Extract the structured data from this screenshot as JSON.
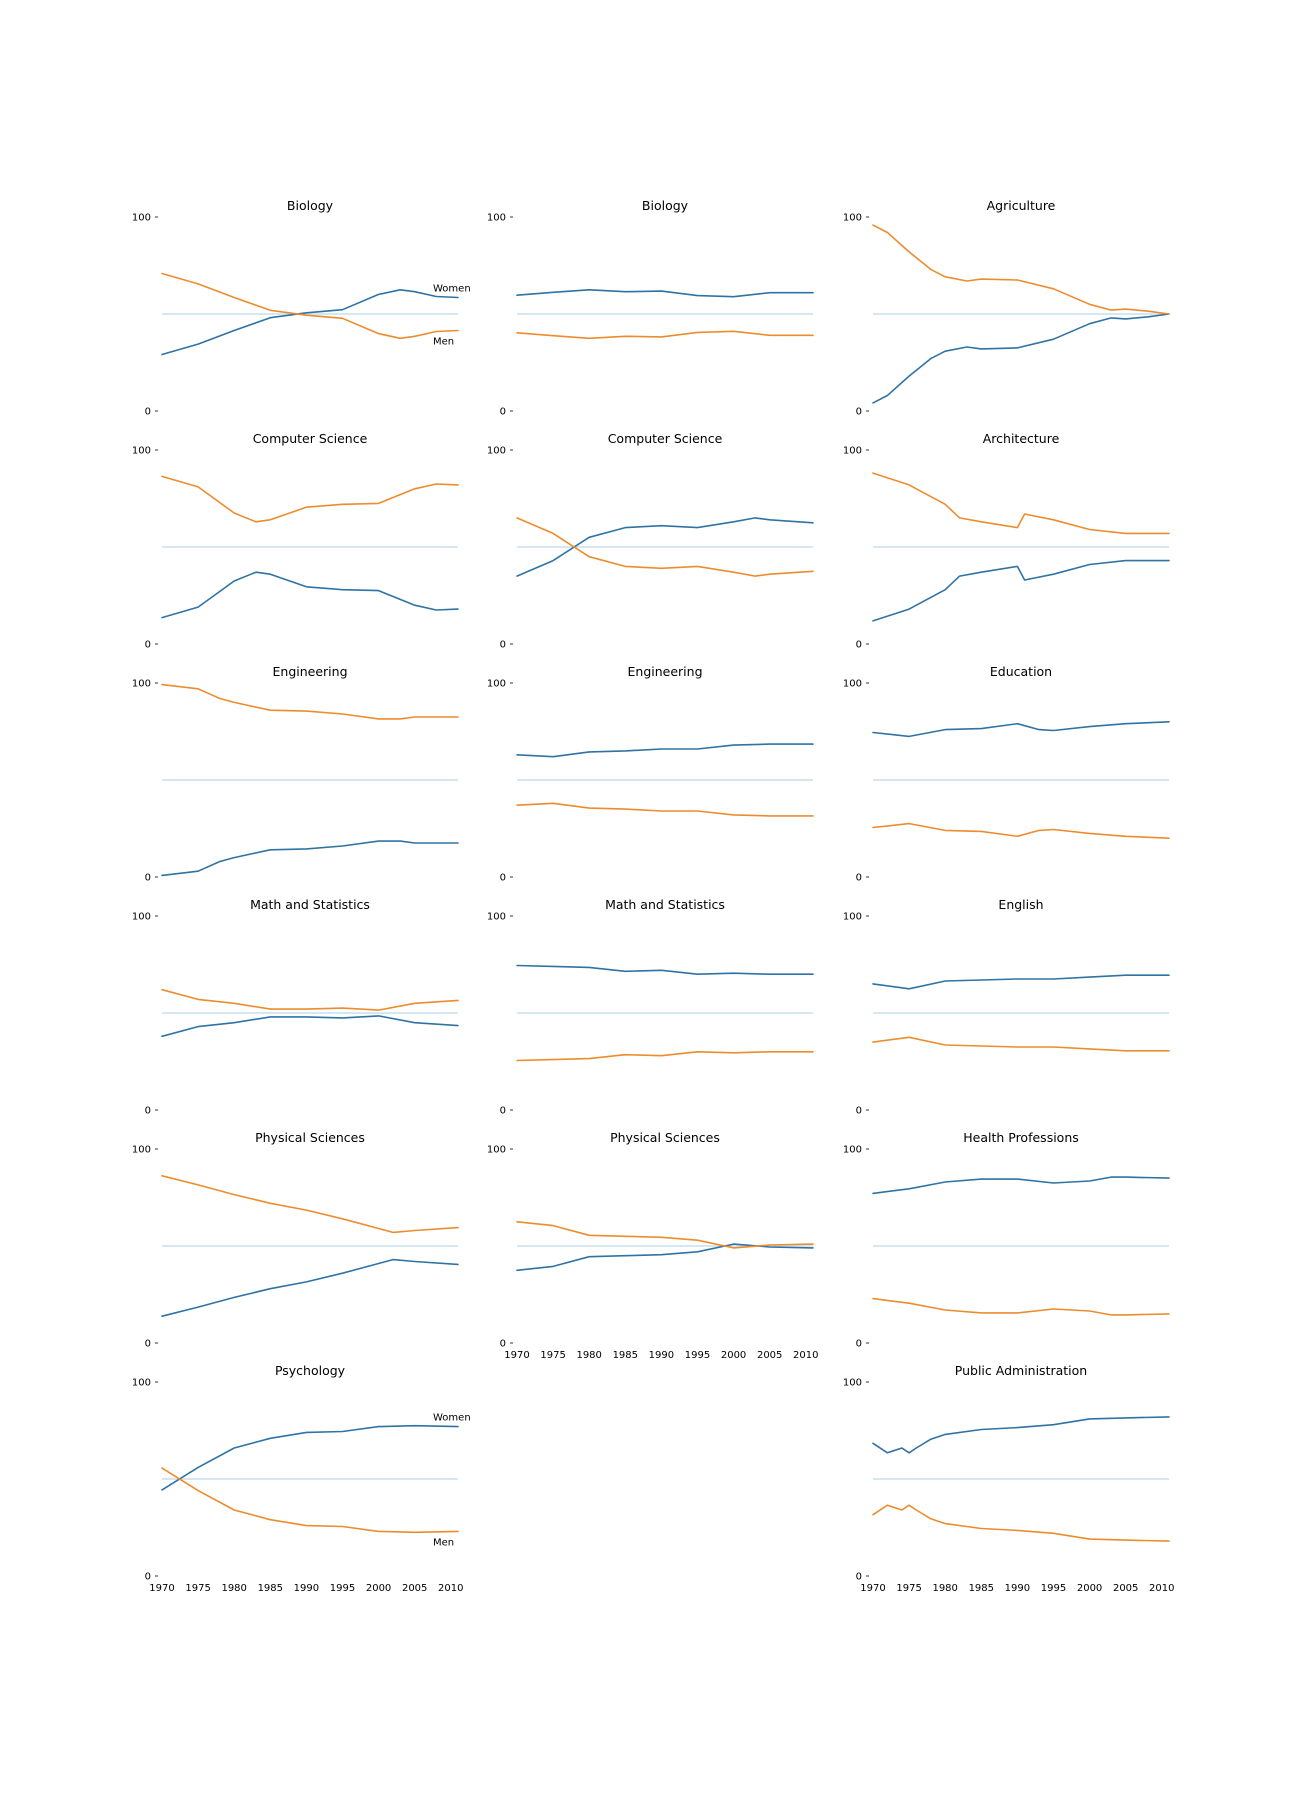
{
  "colors": {
    "women": "#2f73a4",
    "men": "#ec8c2e",
    "midline": "#c9dff0"
  },
  "x_tick_labels": [
    "1970",
    "1975",
    "1980",
    "1985",
    "1990",
    "1995",
    "2000",
    "2005",
    "2010"
  ],
  "chart_data": [
    {
      "type": "line",
      "title": "Biology",
      "ylim": [
        0,
        100
      ],
      "yticks": [
        "0",
        "100"
      ],
      "show_xticks": false,
      "labels": {
        "women": "Women",
        "men": "Men"
      },
      "x": [
        1970,
        1975,
        1980,
        1985,
        1990,
        1995,
        2000,
        2003,
        2005,
        2008,
        2011
      ],
      "series": [
        {
          "key": "women",
          "values": [
            29.1,
            34.5,
            41.5,
            48.1,
            50.6,
            52.2,
            60.1,
            62.5,
            61.5,
            59.0,
            58.5
          ]
        },
        {
          "key": "men",
          "values": [
            70.9,
            65.5,
            58.5,
            51.9,
            49.4,
            47.8,
            39.9,
            37.5,
            38.5,
            41.0,
            41.5
          ]
        }
      ]
    },
    {
      "type": "line",
      "title": "Biology",
      "ylim": [
        0,
        100
      ],
      "yticks": [
        "0",
        "100"
      ],
      "show_xticks": false,
      "x": [
        1970,
        1975,
        1980,
        1985,
        1990,
        1995,
        2000,
        2005,
        2011
      ],
      "series": [
        {
          "key": "women",
          "values": [
            59.7,
            61.2,
            62.5,
            61.5,
            61.8,
            59.5,
            58.9,
            61.0,
            61.0
          ]
        },
        {
          "key": "men",
          "values": [
            40.3,
            38.8,
            37.5,
            38.5,
            38.2,
            40.5,
            41.1,
            39.0,
            39.0
          ]
        }
      ]
    },
    {
      "type": "line",
      "title": "Agriculture",
      "ylim": [
        0,
        100
      ],
      "yticks": [
        "0",
        "100"
      ],
      "show_xticks": false,
      "x": [
        1970,
        1972,
        1975,
        1978,
        1980,
        1983,
        1985,
        1990,
        1995,
        2000,
        2003,
        2005,
        2008,
        2011
      ],
      "series": [
        {
          "key": "women",
          "values": [
            4.2,
            8.0,
            18.0,
            27.0,
            30.8,
            33.0,
            32.0,
            32.5,
            37.0,
            45.0,
            48.0,
            47.5,
            48.5,
            50.0
          ]
        },
        {
          "key": "men",
          "values": [
            95.8,
            92.0,
            82.0,
            73.0,
            69.2,
            67.0,
            68.0,
            67.5,
            63.0,
            55.0,
            52.0,
            52.5,
            51.5,
            50.0
          ]
        }
      ]
    },
    {
      "type": "line",
      "title": "Computer Science",
      "ylim": [
        0,
        100
      ],
      "yticks": [
        "0",
        "100"
      ],
      "show_xticks": false,
      "x": [
        1970,
        1975,
        1980,
        1983,
        1985,
        1990,
        1995,
        2000,
        2003,
        2005,
        2008,
        2011
      ],
      "series": [
        {
          "key": "women",
          "values": [
            13.6,
            19.0,
            32.5,
            37.0,
            36.0,
            29.5,
            28.0,
            27.5,
            23.0,
            20.0,
            17.5,
            18.0
          ]
        },
        {
          "key": "men",
          "values": [
            86.4,
            81.0,
            67.5,
            63.0,
            64.0,
            70.5,
            72.0,
            72.5,
            77.0,
            80.0,
            82.5,
            82.0
          ]
        }
      ]
    },
    {
      "type": "line",
      "title": "Computer Science",
      "ylim": [
        0,
        100
      ],
      "yticks": [
        "0",
        "100"
      ],
      "show_xticks": false,
      "x": [
        1970,
        1975,
        1980,
        1985,
        1990,
        1995,
        2000,
        2003,
        2005,
        2011
      ],
      "series": [
        {
          "key": "women",
          "values": [
            35.0,
            43.0,
            55.0,
            60.0,
            61.0,
            60.0,
            63.0,
            65.0,
            64.0,
            62.5
          ]
        },
        {
          "key": "men",
          "values": [
            65.0,
            57.0,
            45.0,
            40.0,
            39.0,
            40.0,
            37.0,
            35.0,
            36.0,
            37.5
          ]
        }
      ]
    },
    {
      "type": "line",
      "title": "Architecture",
      "ylim": [
        0,
        100
      ],
      "yticks": [
        "0",
        "100"
      ],
      "show_xticks": false,
      "x": [
        1970,
        1975,
        1980,
        1982,
        1985,
        1990,
        1991,
        1995,
        2000,
        2005,
        2011
      ],
      "series": [
        {
          "key": "women",
          "values": [
            11.9,
            18.0,
            28.0,
            35.0,
            37.0,
            40.0,
            33.0,
            36.0,
            41.0,
            43.0,
            43.0
          ]
        },
        {
          "key": "men",
          "values": [
            88.1,
            82.0,
            72.0,
            65.0,
            63.0,
            60.0,
            67.0,
            64.0,
            59.0,
            57.0,
            57.0
          ]
        }
      ]
    },
    {
      "type": "line",
      "title": "Engineering",
      "ylim": [
        0,
        100
      ],
      "yticks": [
        "0",
        "100"
      ],
      "show_xticks": false,
      "x": [
        1970,
        1975,
        1978,
        1980,
        1985,
        1990,
        1995,
        2000,
        2003,
        2005,
        2011
      ],
      "series": [
        {
          "key": "women",
          "values": [
            0.8,
            3.0,
            8.0,
            10.0,
            14.0,
            14.5,
            16.0,
            18.5,
            18.5,
            17.5,
            17.5
          ]
        },
        {
          "key": "men",
          "values": [
            99.2,
            97.0,
            92.0,
            90.0,
            86.0,
            85.5,
            84.0,
            81.5,
            81.5,
            82.5,
            82.5
          ]
        }
      ]
    },
    {
      "type": "line",
      "title": "Engineering",
      "ylim": [
        0,
        100
      ],
      "yticks": [
        "0",
        "100"
      ],
      "show_xticks": false,
      "x": [
        1970,
        1975,
        1980,
        1985,
        1990,
        1995,
        2000,
        2005,
        2011
      ],
      "series": [
        {
          "key": "women",
          "values": [
            63.0,
            62.0,
            64.5,
            65.0,
            66.0,
            66.0,
            68.0,
            68.5,
            68.5
          ]
        },
        {
          "key": "men",
          "values": [
            37.0,
            38.0,
            35.5,
            35.0,
            34.0,
            34.0,
            32.0,
            31.5,
            31.5
          ]
        }
      ]
    },
    {
      "type": "line",
      "title": "Education",
      "ylim": [
        0,
        100
      ],
      "yticks": [
        "0",
        "100"
      ],
      "show_xticks": false,
      "x": [
        1970,
        1975,
        1980,
        1985,
        1990,
        1993,
        1995,
        2000,
        2005,
        2011
      ],
      "series": [
        {
          "key": "women",
          "values": [
            74.5,
            72.5,
            76.0,
            76.5,
            79.0,
            76.0,
            75.5,
            77.5,
            79.0,
            80.0
          ]
        },
        {
          "key": "men",
          "values": [
            25.5,
            27.5,
            24.0,
            23.5,
            21.0,
            24.0,
            24.5,
            22.5,
            21.0,
            20.0
          ]
        }
      ]
    },
    {
      "type": "line",
      "title": "Math and Statistics",
      "ylim": [
        0,
        100
      ],
      "yticks": [
        "0",
        "100"
      ],
      "show_xticks": false,
      "x": [
        1970,
        1975,
        1980,
        1985,
        1990,
        1995,
        2000,
        2005,
        2011
      ],
      "series": [
        {
          "key": "women",
          "values": [
            38.0,
            43.0,
            45.0,
            48.0,
            48.0,
            47.5,
            48.5,
            45.0,
            43.5
          ]
        },
        {
          "key": "men",
          "values": [
            62.0,
            57.0,
            55.0,
            52.0,
            52.0,
            52.5,
            51.5,
            55.0,
            56.5
          ]
        }
      ]
    },
    {
      "type": "line",
      "title": "Math and Statistics",
      "ylim": [
        0,
        100
      ],
      "yticks": [
        "0",
        "100"
      ],
      "show_xticks": false,
      "x": [
        1970,
        1975,
        1980,
        1985,
        1990,
        1995,
        2000,
        2005,
        2011
      ],
      "series": [
        {
          "key": "women",
          "values": [
            74.5,
            74.0,
            73.5,
            71.5,
            72.0,
            70.0,
            70.5,
            70.0,
            70.0
          ]
        },
        {
          "key": "men",
          "values": [
            25.5,
            26.0,
            26.5,
            28.5,
            28.0,
            30.0,
            29.5,
            30.0,
            30.0
          ]
        }
      ]
    },
    {
      "type": "line",
      "title": "English",
      "ylim": [
        0,
        100
      ],
      "yticks": [
        "0",
        "100"
      ],
      "show_xticks": false,
      "x": [
        1970,
        1975,
        1980,
        1985,
        1990,
        1995,
        2000,
        2005,
        2011
      ],
      "series": [
        {
          "key": "women",
          "values": [
            65.0,
            62.5,
            66.5,
            67.0,
            67.5,
            67.5,
            68.5,
            69.5,
            69.5
          ]
        },
        {
          "key": "men",
          "values": [
            35.0,
            37.5,
            33.5,
            33.0,
            32.5,
            32.5,
            31.5,
            30.5,
            30.5
          ]
        }
      ]
    },
    {
      "type": "line",
      "title": "Physical Sciences",
      "ylim": [
        0,
        100
      ],
      "yticks": [
        "0",
        "100"
      ],
      "show_xticks": false,
      "x": [
        1970,
        1975,
        1980,
        1985,
        1990,
        1995,
        2000,
        2002,
        2005,
        2011
      ],
      "series": [
        {
          "key": "women",
          "values": [
            13.8,
            18.5,
            23.5,
            28.0,
            31.5,
            36.0,
            41.0,
            43.0,
            42.0,
            40.5
          ]
        },
        {
          "key": "men",
          "values": [
            86.2,
            81.5,
            76.5,
            72.0,
            68.5,
            64.0,
            59.0,
            57.0,
            58.0,
            59.5
          ]
        }
      ]
    },
    {
      "type": "line",
      "title": "Physical Sciences",
      "ylim": [
        0,
        100
      ],
      "yticks": [
        "0",
        "100"
      ],
      "show_xticks": true,
      "x": [
        1970,
        1975,
        1980,
        1985,
        1990,
        1995,
        2000,
        2005,
        2011
      ],
      "series": [
        {
          "key": "women",
          "values": [
            37.5,
            39.5,
            44.5,
            45.0,
            45.5,
            47.0,
            51.0,
            49.5,
            49.0
          ]
        },
        {
          "key": "men",
          "values": [
            62.5,
            60.5,
            55.5,
            55.0,
            54.5,
            53.0,
            49.0,
            50.5,
            51.0
          ]
        }
      ]
    },
    {
      "type": "line",
      "title": "Health Professions",
      "ylim": [
        0,
        100
      ],
      "yticks": [
        "0",
        "100"
      ],
      "show_xticks": false,
      "x": [
        1970,
        1975,
        1980,
        1985,
        1990,
        1995,
        2000,
        2003,
        2005,
        2011
      ],
      "series": [
        {
          "key": "women",
          "values": [
            77.1,
            79.5,
            83.0,
            84.5,
            84.5,
            82.5,
            83.5,
            85.5,
            85.5,
            85.0
          ]
        },
        {
          "key": "men",
          "values": [
            22.9,
            20.5,
            17.0,
            15.5,
            15.5,
            17.5,
            16.5,
            14.5,
            14.5,
            15.0
          ]
        }
      ]
    },
    {
      "type": "line",
      "title": "Psychology",
      "ylim": [
        0,
        100
      ],
      "yticks": [
        "0",
        "100"
      ],
      "show_xticks": true,
      "labels": {
        "women": "Women",
        "men": "Men"
      },
      "x": [
        1970,
        1975,
        1980,
        1985,
        1990,
        1995,
        2000,
        2005,
        2011
      ],
      "series": [
        {
          "key": "women",
          "values": [
            44.4,
            56.0,
            66.0,
            71.0,
            74.0,
            74.5,
            77.0,
            77.5,
            77.0
          ]
        },
        {
          "key": "men",
          "values": [
            55.6,
            44.0,
            34.0,
            29.0,
            26.0,
            25.5,
            23.0,
            22.5,
            23.0
          ]
        }
      ]
    },
    {
      "type": "line",
      "title": "Public Administration",
      "ylim": [
        0,
        100
      ],
      "yticks": [
        "0",
        "100"
      ],
      "show_xticks": true,
      "x": [
        1970,
        1972,
        1974,
        1975,
        1976,
        1978,
        1980,
        1985,
        1990,
        1995,
        2000,
        2005,
        2011
      ],
      "series": [
        {
          "key": "women",
          "values": [
            68.4,
            63.5,
            66.0,
            63.5,
            66.0,
            70.5,
            73.0,
            75.5,
            76.5,
            78.0,
            81.0,
            81.5,
            82.0
          ]
        },
        {
          "key": "men",
          "values": [
            31.6,
            36.5,
            34.0,
            36.5,
            34.0,
            29.5,
            27.0,
            24.5,
            23.5,
            22.0,
            19.0,
            18.5,
            18.0
          ]
        }
      ]
    }
  ]
}
